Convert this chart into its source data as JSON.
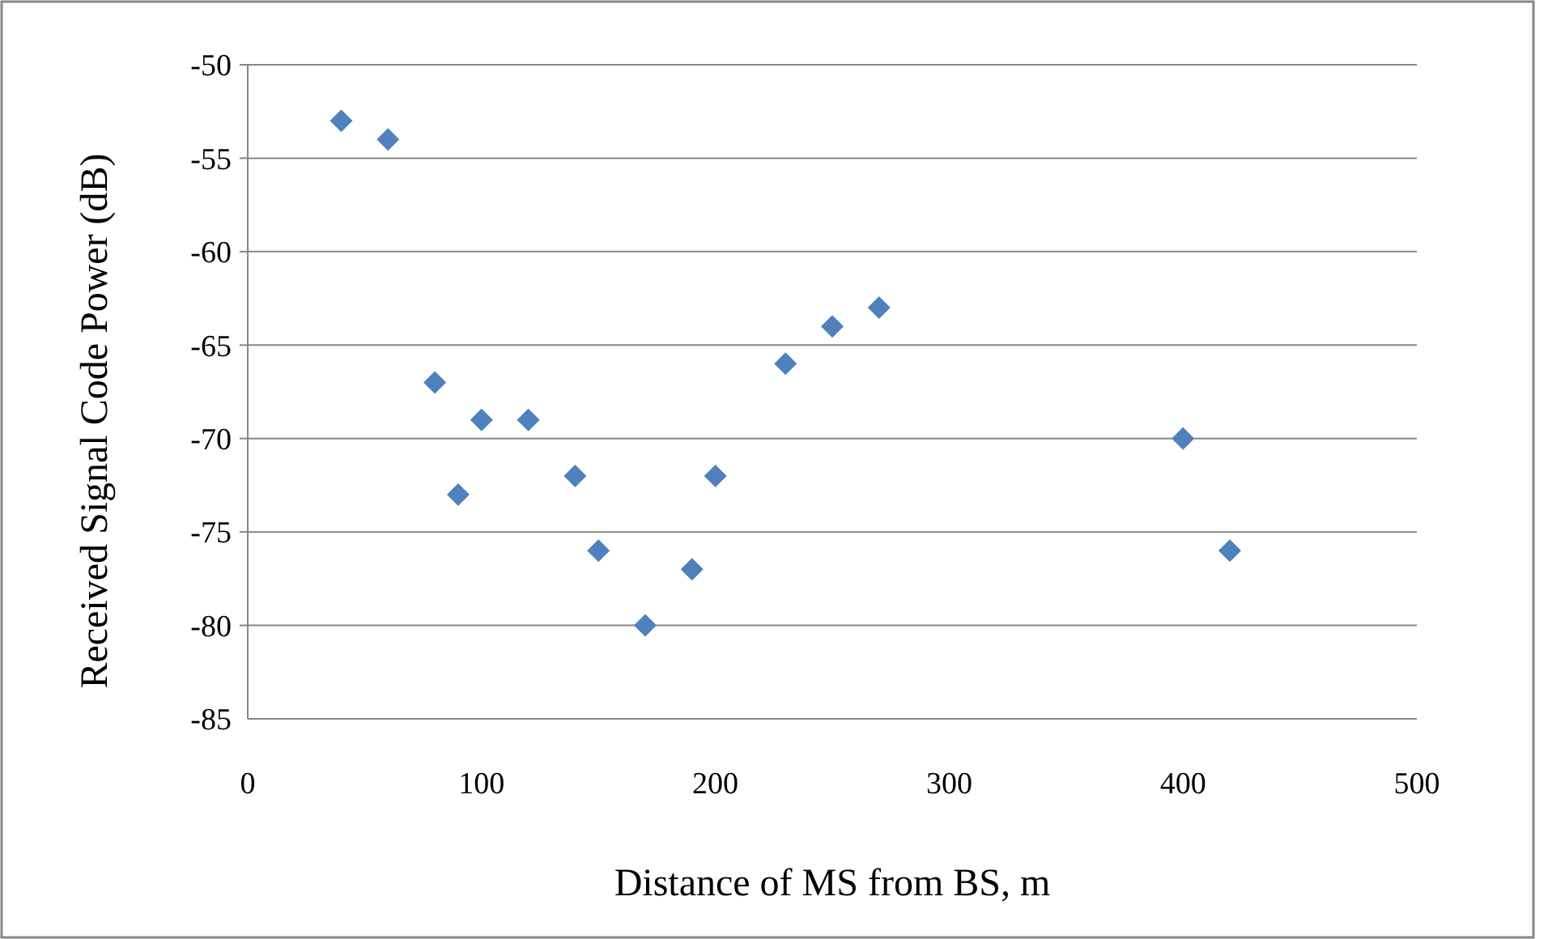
{
  "chart_data": {
    "type": "scatter",
    "xlabel": "Distance of MS from BS, m",
    "ylabel": "Received Signal Code Power (dB)",
    "x": [
      40,
      60,
      80,
      90,
      100,
      120,
      140,
      150,
      170,
      190,
      200,
      230,
      250,
      270,
      400,
      420
    ],
    "series": [
      {
        "color": "#4f81bd",
        "values": [
          -53,
          -54,
          -67,
          -73,
          -69,
          -69,
          -72,
          -76,
          -80,
          -77,
          -72,
          -66,
          -64,
          -63,
          -70,
          -76
        ]
      }
    ],
    "xlim": [
      0,
      500
    ],
    "xticks": [
      0,
      100,
      200,
      300,
      400,
      500
    ],
    "ylim": [
      -85,
      -50
    ],
    "yticks": [
      -85,
      -80,
      -75,
      -70,
      -65,
      -60,
      -55,
      -50
    ],
    "grid": "y",
    "marker": "diamond"
  }
}
